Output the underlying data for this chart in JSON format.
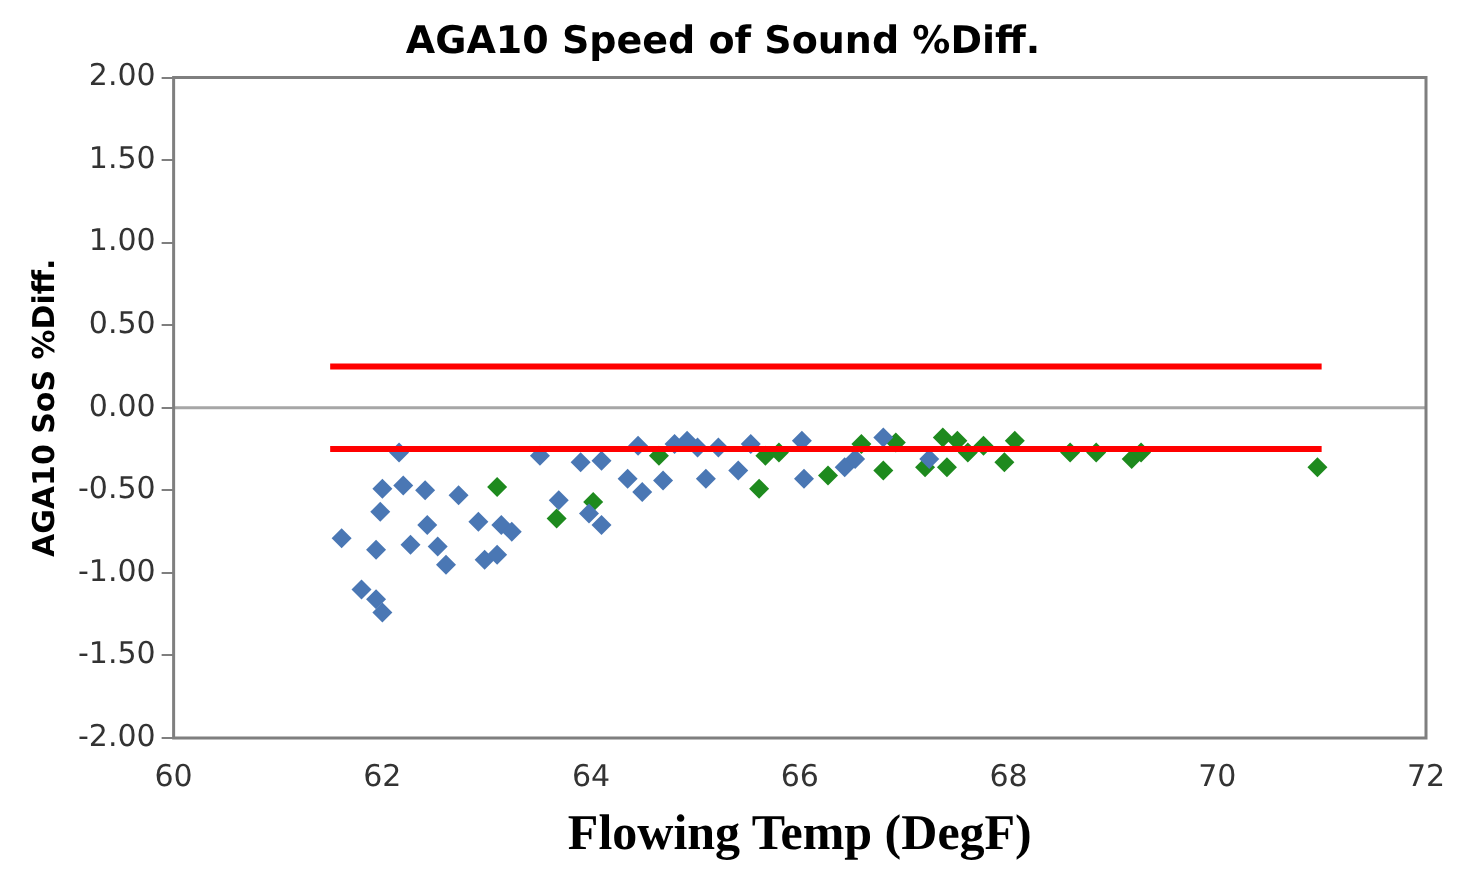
{
  "chart_data": {
    "type": "scatter",
    "title": "AGA10 Speed of Sound %Diff.",
    "xlabel": "Flowing Temp (DegF)",
    "ylabel": "AGA10 SoS %Diff.",
    "xlim": [
      60,
      72
    ],
    "xticks": [
      60,
      62,
      64,
      66,
      68,
      70,
      72
    ],
    "ylim": [
      -2,
      2
    ],
    "yticks": [
      {
        "value": 2,
        "label": "2.00"
      },
      {
        "value": 1.5,
        "label": "1.50"
      },
      {
        "value": 1,
        "label": "1.00"
      },
      {
        "value": 0.5,
        "label": "0.50"
      },
      {
        "value": 0,
        "label": "0.00"
      },
      {
        "value": -0.5,
        "label": "-0.50"
      },
      {
        "value": -1,
        "label": "-1.00"
      },
      {
        "value": -1.5,
        "label": "-1.50"
      },
      {
        "value": -2,
        "label": "-2.00"
      }
    ],
    "grid": false,
    "legend": false,
    "marker": "diamond",
    "ref_lines": [
      {
        "axis": "y",
        "value": 0,
        "color": "#a6a6a6"
      }
    ],
    "series": [
      {
        "type": "line",
        "color": "#ff0000",
        "marker": "none",
        "x": [
          61.5,
          71.0
        ],
        "values": [
          0.25,
          0.25
        ]
      },
      {
        "type": "line",
        "color": "#ff0000",
        "marker": "none",
        "x": [
          61.5,
          71.0
        ],
        "values": [
          -0.25,
          -0.25
        ]
      },
      {
        "color": "#4a77b4",
        "x": [
          62.16,
          63.51,
          62.0,
          62.2,
          62.41,
          62.73,
          61.98,
          61.61,
          61.94,
          62.43,
          62.27,
          62.53,
          62.61,
          62.92,
          63.14,
          63.24,
          62.98,
          63.1,
          61.8,
          61.94,
          62.0,
          63.69,
          63.9,
          64.1,
          63.98,
          64.1,
          64.45,
          64.35,
          64.49,
          64.69,
          64.8,
          64.92,
          65.02,
          65.1,
          65.22,
          65.41,
          65.53,
          66.02,
          66.04,
          66.43,
          66.53,
          66.8,
          67.24
        ],
        "values": [
          -0.27,
          -0.29,
          -0.49,
          -0.47,
          -0.5,
          -0.53,
          -0.63,
          -0.79,
          -0.86,
          -0.71,
          -0.83,
          -0.84,
          -0.95,
          -0.69,
          -0.71,
          -0.75,
          -0.92,
          -0.89,
          -1.1,
          -1.16,
          -1.24,
          -0.56,
          -0.33,
          -0.32,
          -0.64,
          -0.71,
          -0.23,
          -0.43,
          -0.51,
          -0.44,
          -0.22,
          -0.2,
          -0.24,
          -0.43,
          -0.24,
          -0.38,
          -0.22,
          -0.2,
          -0.43,
          -0.36,
          -0.31,
          -0.18,
          -0.31
        ]
      },
      {
        "color": "#1e8a1e",
        "x": [
          63.1,
          63.67,
          64.02,
          64.65,
          65.61,
          65.67,
          65.8,
          66.27,
          66.59,
          66.8,
          66.92,
          67.2,
          67.37,
          67.41,
          67.51,
          67.61,
          67.76,
          67.96,
          68.06,
          68.59,
          68.84,
          69.18,
          69.27,
          70.96
        ],
        "values": [
          -0.48,
          -0.67,
          -0.57,
          -0.29,
          -0.49,
          -0.29,
          -0.27,
          -0.41,
          -0.22,
          -0.38,
          -0.21,
          -0.36,
          -0.18,
          -0.36,
          -0.2,
          -0.27,
          -0.23,
          -0.33,
          -0.2,
          -0.27,
          -0.27,
          -0.31,
          -0.27,
          -0.36
        ]
      }
    ]
  }
}
